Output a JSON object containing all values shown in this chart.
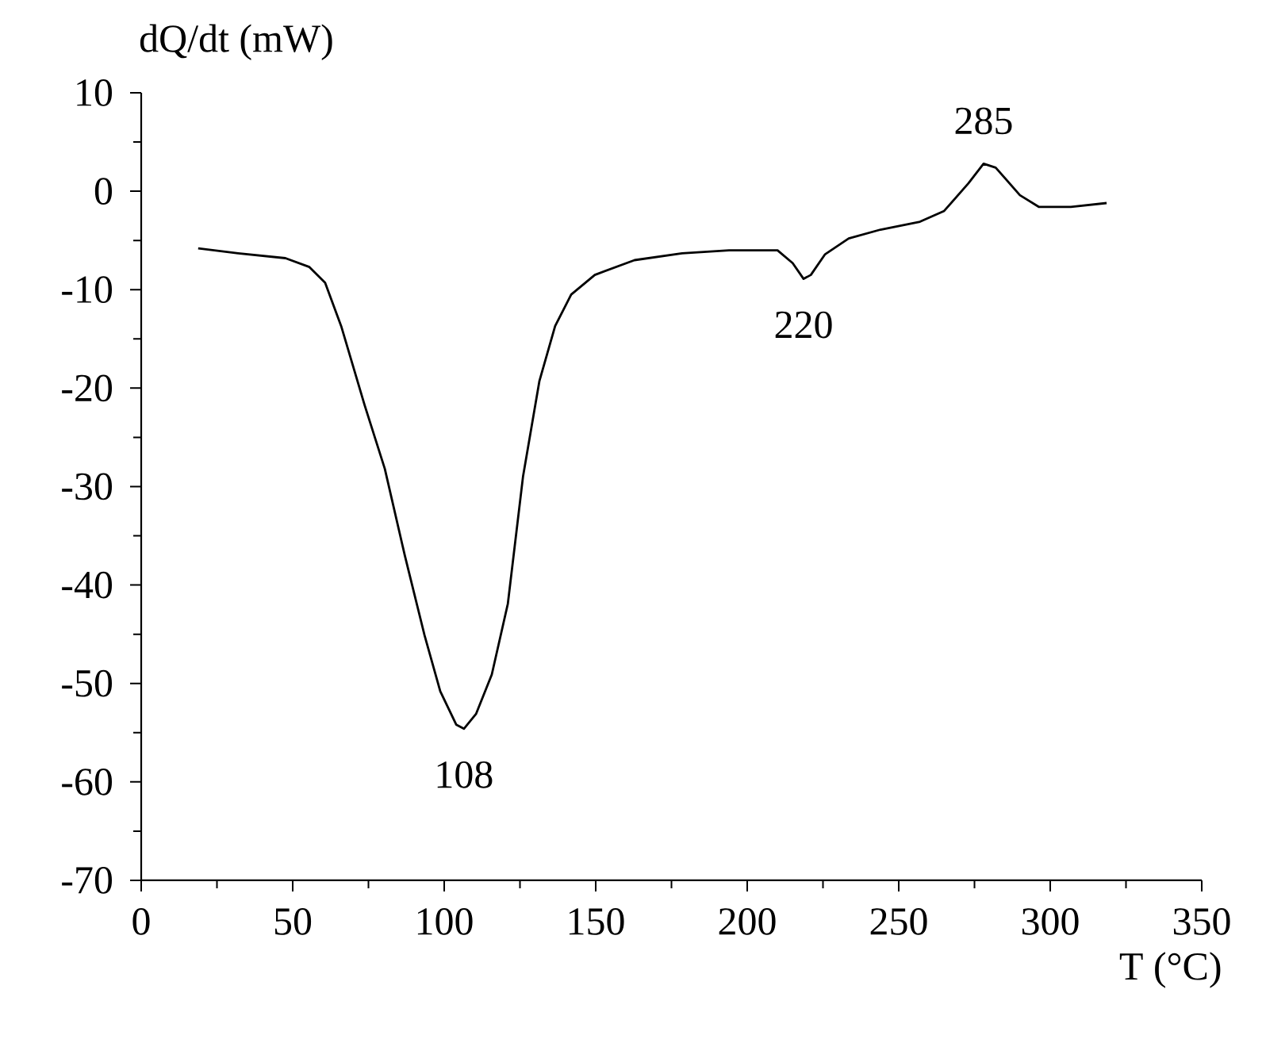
{
  "chart_data": {
    "type": "line",
    "xlabel": "T (°C)",
    "ylabel": "dQ/dt (mW)",
    "x": [
      18.8,
      32,
      47.6,
      55.5,
      60.7,
      66,
      73.8,
      80.4,
      87,
      93.5,
      98.7,
      104,
      106.5,
      110.5,
      115.7,
      121,
      126,
      131.4,
      136.6,
      141.9,
      149.7,
      162.8,
      178.5,
      194,
      210,
      215,
      218.6,
      221,
      225.7,
      233.5,
      244,
      257,
      265,
      273,
      278,
      282,
      290,
      296.3,
      306.8,
      318.6
    ],
    "series": [
      {
        "color": "#000000",
        "values": [
          -5.8,
          -6.3,
          -6.8,
          -7.7,
          -9.3,
          -13.7,
          -21.8,
          -28.2,
          -37,
          -45.1,
          -50.8,
          -54.2,
          -54.6,
          -53.1,
          -49.1,
          -41.9,
          -29,
          -19.3,
          -13.7,
          -10.5,
          -8.5,
          -7,
          -6.3,
          -6,
          -6,
          -7.3,
          -8.9,
          -8.5,
          -6.4,
          -4.8,
          -3.9,
          -3.1,
          -2,
          0.8,
          2.8,
          2.4,
          -0.4,
          -1.6,
          -1.6,
          -1.2
        ]
      }
    ],
    "xlim": [
      0,
      350
    ],
    "xticks": [
      0,
      50,
      100,
      150,
      200,
      250,
      300,
      350
    ],
    "ylim": [
      -70,
      10
    ],
    "yticks": [
      -70,
      -60,
      -50,
      -40,
      -30,
      -20,
      -10,
      0,
      10
    ],
    "annotations": [
      {
        "text": "108",
        "x": 106.5,
        "y": -54.6
      },
      {
        "text": "220",
        "x": 218.6,
        "y": -8.9
      },
      {
        "text": "285",
        "x": 278,
        "y": 2.8
      }
    ]
  }
}
